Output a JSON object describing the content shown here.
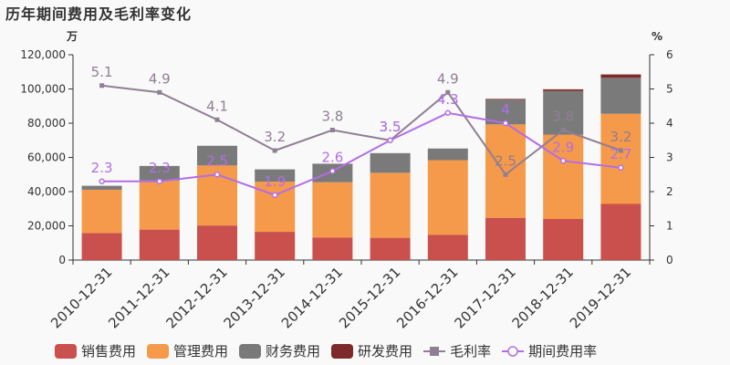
{
  "page_title": "历年期间费用及毛利率变化",
  "chart_data": {
    "type": "bar",
    "stacked": true,
    "title": "历年期间费用及毛利率变化",
    "y_left_unit": "万",
    "y_right_unit": "%",
    "ylim_left": [
      0,
      120000
    ],
    "ylim_right": [
      0,
      6
    ],
    "left_ticks": [
      "0",
      "20,000",
      "40,000",
      "60,000",
      "80,000",
      "100,000",
      "120,000"
    ],
    "right_ticks": [
      "0",
      "1",
      "2",
      "3",
      "4",
      "5",
      "6"
    ],
    "categories": [
      "2010-12-31",
      "2011-12-31",
      "2012-12-31",
      "2013-12-31",
      "2014-12-31",
      "2015-12-31",
      "2016-12-31",
      "2017-12-31",
      "2018-12-31",
      "2019-12-31"
    ],
    "series": [
      {
        "name": "销售费用",
        "type": "bar",
        "axis": "left",
        "color": "#c9504d",
        "values": [
          15800,
          17800,
          20200,
          16500,
          13200,
          13000,
          14700,
          24700,
          24000,
          32800
        ]
      },
      {
        "name": "管理费用",
        "type": "bar",
        "axis": "left",
        "color": "#f5994a",
        "values": [
          25300,
          28700,
          35100,
          29300,
          32300,
          38000,
          43700,
          54600,
          49300,
          52700
        ]
      },
      {
        "name": "财务费用",
        "type": "bar",
        "axis": "left",
        "color": "#7a7a7a",
        "values": [
          2300,
          8500,
          11500,
          7200,
          10800,
          11500,
          6800,
          14400,
          25500,
          21000
        ]
      },
      {
        "name": "研发费用",
        "type": "bar",
        "axis": "left",
        "color": "#7f2a2a",
        "values": [
          0,
          0,
          0,
          0,
          0,
          0,
          0,
          500,
          1000,
          2000
        ]
      },
      {
        "name": "毛利率",
        "type": "line",
        "axis": "right",
        "color": "#8f7f93",
        "marker": "square",
        "values": [
          5.1,
          4.9,
          4.1,
          3.2,
          3.8,
          3.5,
          4.9,
          2.5,
          3.8,
          3.2
        ],
        "labels": [
          "5.1",
          "4.9",
          "4.1",
          "3.2",
          "3.8",
          "3.5",
          "4.9",
          "2.5",
          "3.8",
          "3.2"
        ]
      },
      {
        "name": "期间费用率",
        "type": "line",
        "axis": "right",
        "color": "#b36ee6",
        "marker": "circle",
        "values": [
          2.3,
          2.3,
          2.5,
          1.9,
          2.6,
          3.5,
          4.3,
          4.0,
          2.9,
          2.7
        ],
        "labels": [
          "2.3",
          "2.3",
          "2.5",
          "1.9",
          "2.6",
          "3.5",
          "4.3",
          "4",
          "2.9",
          "2.7"
        ]
      }
    ],
    "legend_position": "bottom",
    "grid": false
  }
}
